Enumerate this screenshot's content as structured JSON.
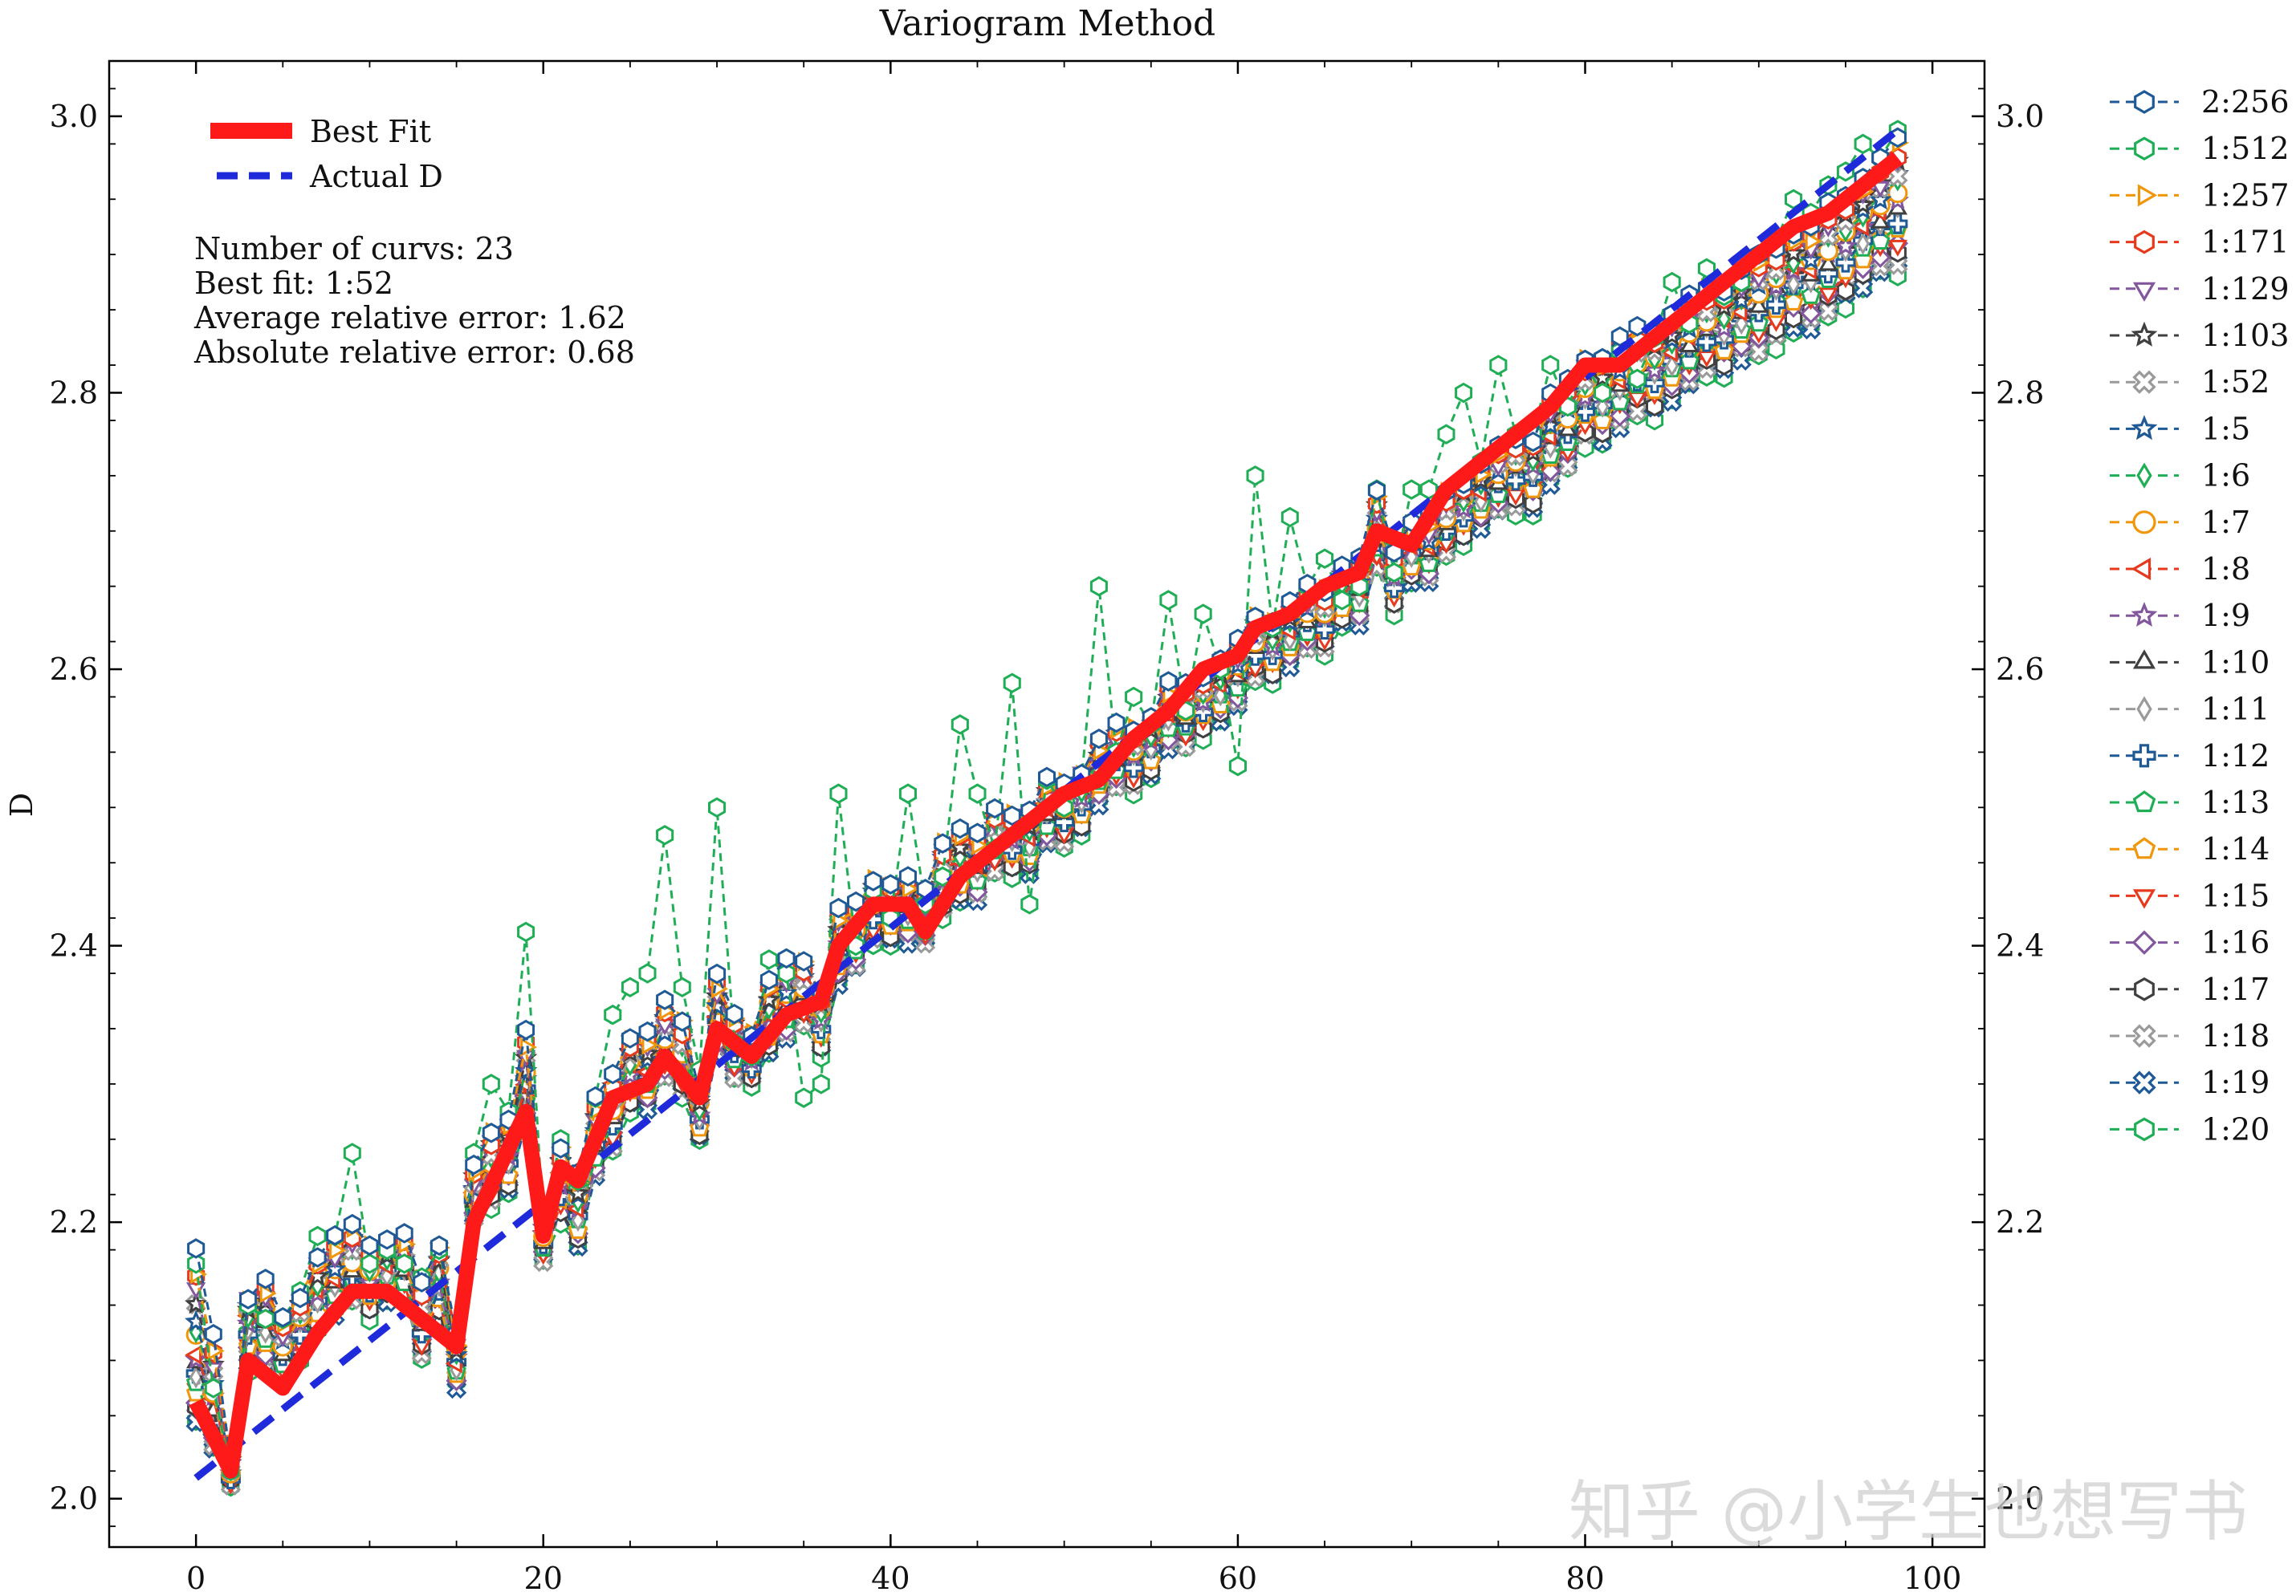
{
  "chart_data": {
    "type": "line",
    "title": "Variogram Method",
    "ylabel": "D",
    "xlabel": "",
    "xlim": [
      -5,
      103
    ],
    "ylim": [
      1.965,
      3.04
    ],
    "x_ticks": [
      0,
      20,
      40,
      60,
      80,
      100
    ],
    "y_ticks": [
      2.0,
      2.2,
      2.4,
      2.6,
      2.8,
      3.0
    ],
    "y_tick_labels": [
      "2.0",
      "2.2",
      "2.4",
      "2.6",
      "2.8",
      "3.0"
    ],
    "right_y_tick_labels": [
      "2.0",
      "2.2",
      "2.4",
      "2.6",
      "2.8",
      "3.0"
    ],
    "grid": false,
    "legend_placement": "right, outside plot area",
    "inset_legend_placement": "top-left",
    "annotation_lines": [
      "Number of curvs: 23",
      "Best fit: 1:52",
      "Average relative error: 1.62",
      "Absolute relative error: 0.68"
    ],
    "highlight_series": [
      {
        "name": "Best Fit",
        "color": "#ff1a1a",
        "style": "solid-thick",
        "x": [
          0,
          2,
          3,
          5,
          7,
          9,
          11,
          13,
          15,
          16,
          19,
          20,
          21,
          22,
          24,
          26,
          27,
          29,
          30,
          32,
          34,
          36,
          37,
          39,
          41,
          42,
          44,
          46,
          48,
          50,
          52,
          54,
          56,
          58,
          60,
          61,
          63,
          65,
          67,
          68,
          70,
          72,
          74,
          76,
          78,
          80,
          82,
          84,
          86,
          88,
          90,
          92,
          94,
          96,
          98
        ],
        "values": [
          2.07,
          2.02,
          2.1,
          2.08,
          2.12,
          2.15,
          2.15,
          2.13,
          2.11,
          2.2,
          2.28,
          2.19,
          2.24,
          2.23,
          2.29,
          2.3,
          2.32,
          2.29,
          2.34,
          2.32,
          2.35,
          2.36,
          2.4,
          2.43,
          2.43,
          2.41,
          2.45,
          2.47,
          2.49,
          2.51,
          2.52,
          2.55,
          2.57,
          2.6,
          2.61,
          2.63,
          2.64,
          2.66,
          2.67,
          2.7,
          2.69,
          2.73,
          2.75,
          2.77,
          2.79,
          2.82,
          2.82,
          2.84,
          2.86,
          2.88,
          2.9,
          2.92,
          2.93,
          2.95,
          2.97
        ]
      },
      {
        "name": "Actual D",
        "color": "#1f2bdb",
        "style": "dashed-thick",
        "x": [
          0,
          98
        ],
        "values": [
          2.015,
          2.99
        ]
      }
    ],
    "series": [
      {
        "name": "2:256",
        "color": "#1f5a96",
        "marker": "hexagon"
      },
      {
        "name": "1:512",
        "color": "#1fae55",
        "marker": "hexagon"
      },
      {
        "name": "1:257",
        "color": "#f0960a",
        "marker": "triangle-right"
      },
      {
        "name": "1:171",
        "color": "#e6391e",
        "marker": "hexagon"
      },
      {
        "name": "1:129",
        "color": "#82579e",
        "marker": "triangle-down"
      },
      {
        "name": "1:103",
        "color": "#404040",
        "marker": "star"
      },
      {
        "name": "1:52",
        "color": "#9a9a9a",
        "marker": "x-filled"
      },
      {
        "name": "1:5",
        "color": "#1f5a96",
        "marker": "star"
      },
      {
        "name": "1:6",
        "color": "#1fae55",
        "marker": "thin-diamond"
      },
      {
        "name": "1:7",
        "color": "#f0960a",
        "marker": "circle"
      },
      {
        "name": "1:8",
        "color": "#e6391e",
        "marker": "triangle-left"
      },
      {
        "name": "1:9",
        "color": "#82579e",
        "marker": "star"
      },
      {
        "name": "1:10",
        "color": "#404040",
        "marker": "triangle-up"
      },
      {
        "name": "1:11",
        "color": "#9a9a9a",
        "marker": "thin-diamond"
      },
      {
        "name": "1:12",
        "color": "#1f5a96",
        "marker": "plus-filled"
      },
      {
        "name": "1:13",
        "color": "#1fae55",
        "marker": "pentagon"
      },
      {
        "name": "1:14",
        "color": "#f0960a",
        "marker": "pentagon"
      },
      {
        "name": "1:15",
        "color": "#e6391e",
        "marker": "triangle-down"
      },
      {
        "name": "1:16",
        "color": "#82579e",
        "marker": "diamond"
      },
      {
        "name": "1:17",
        "color": "#404040",
        "marker": "hexagon"
      },
      {
        "name": "1:18",
        "color": "#9a9a9a",
        "marker": "x-filled"
      },
      {
        "name": "1:19",
        "color": "#1f5a96",
        "marker": "x-filled"
      },
      {
        "name": "1:20",
        "color": "#1fae55",
        "marker": "hexagon"
      }
    ],
    "curve_bundle": {
      "x": [
        0,
        1,
        2,
        3,
        4,
        5,
        6,
        7,
        8,
        9,
        10,
        11,
        12,
        13,
        14,
        15,
        16,
        17,
        18,
        19,
        20,
        21,
        22,
        23,
        24,
        25,
        26,
        27,
        28,
        29,
        30,
        31,
        32,
        33,
        34,
        35,
        36,
        37,
        38,
        39,
        40,
        41,
        42,
        43,
        44,
        45,
        46,
        47,
        48,
        49,
        50,
        51,
        52,
        53,
        54,
        55,
        56,
        57,
        58,
        59,
        60,
        61,
        62,
        63,
        64,
        65,
        66,
        67,
        68,
        69,
        70,
        71,
        72,
        73,
        74,
        75,
        76,
        77,
        78,
        79,
        80,
        81,
        82,
        83,
        84,
        85,
        86,
        87,
        88,
        89,
        90,
        91,
        92,
        93,
        94,
        95,
        96,
        97,
        98
      ],
      "center": [
        2.1,
        2.07,
        2.02,
        2.13,
        2.13,
        2.11,
        2.13,
        2.15,
        2.16,
        2.17,
        2.16,
        2.17,
        2.17,
        2.13,
        2.16,
        2.1,
        2.22,
        2.24,
        2.25,
        2.3,
        2.19,
        2.23,
        2.21,
        2.26,
        2.28,
        2.31,
        2.31,
        2.33,
        2.32,
        2.28,
        2.35,
        2.33,
        2.32,
        2.35,
        2.36,
        2.37,
        2.35,
        2.4,
        2.41,
        2.43,
        2.43,
        2.43,
        2.42,
        2.45,
        2.46,
        2.46,
        2.48,
        2.48,
        2.48,
        2.5,
        2.5,
        2.51,
        2.53,
        2.54,
        2.54,
        2.55,
        2.57,
        2.57,
        2.58,
        2.59,
        2.6,
        2.62,
        2.62,
        2.63,
        2.64,
        2.64,
        2.66,
        2.66,
        2.7,
        2.67,
        2.69,
        2.69,
        2.71,
        2.72,
        2.73,
        2.74,
        2.75,
        2.75,
        2.77,
        2.78,
        2.8,
        2.8,
        2.81,
        2.82,
        2.82,
        2.83,
        2.84,
        2.85,
        2.85,
        2.86,
        2.87,
        2.88,
        2.89,
        2.89,
        2.9,
        2.91,
        2.92,
        2.93,
        2.94
      ],
      "low_spread": [
        0.05,
        0.04,
        0.01,
        0.04,
        0.04,
        0.03,
        0.03,
        0.03,
        0.03,
        0.03,
        0.03,
        0.03,
        0.03,
        0.03,
        0.03,
        0.02,
        0.02,
        0.03,
        0.03,
        0.03,
        0.02,
        0.03,
        0.03,
        0.03,
        0.03,
        0.03,
        0.03,
        0.03,
        0.03,
        0.02,
        0.03,
        0.03,
        0.02,
        0.03,
        0.03,
        0.03,
        0.03,
        0.03,
        0.03,
        0.03,
        0.03,
        0.03,
        0.02,
        0.03,
        0.03,
        0.03,
        0.03,
        0.03,
        0.03,
        0.03,
        0.03,
        0.03,
        0.03,
        0.03,
        0.03,
        0.03,
        0.03,
        0.03,
        0.03,
        0.03,
        0.03,
        0.03,
        0.03,
        0.03,
        0.03,
        0.03,
        0.03,
        0.03,
        0.03,
        0.03,
        0.03,
        0.03,
        0.03,
        0.03,
        0.03,
        0.03,
        0.04,
        0.04,
        0.04,
        0.04,
        0.04,
        0.04,
        0.04,
        0.04,
        0.04,
        0.04,
        0.04,
        0.04,
        0.04,
        0.04,
        0.05,
        0.05,
        0.05,
        0.05,
        0.05,
        0.05,
        0.05,
        0.05,
        0.06
      ],
      "high_spread": [
        0.09,
        0.05,
        0.01,
        0.02,
        0.03,
        0.02,
        0.02,
        0.03,
        0.03,
        0.03,
        0.03,
        0.02,
        0.02,
        0.03,
        0.03,
        0.02,
        0.02,
        0.03,
        0.03,
        0.04,
        0.02,
        0.03,
        0.03,
        0.03,
        0.03,
        0.03,
        0.03,
        0.03,
        0.03,
        0.02,
        0.03,
        0.02,
        0.02,
        0.03,
        0.03,
        0.02,
        0.02,
        0.03,
        0.02,
        0.02,
        0.02,
        0.02,
        0.02,
        0.03,
        0.03,
        0.02,
        0.02,
        0.02,
        0.02,
        0.02,
        0.02,
        0.02,
        0.02,
        0.02,
        0.02,
        0.02,
        0.02,
        0.02,
        0.02,
        0.02,
        0.02,
        0.02,
        0.02,
        0.02,
        0.02,
        0.02,
        0.02,
        0.02,
        0.03,
        0.02,
        0.02,
        0.02,
        0.02,
        0.02,
        0.02,
        0.02,
        0.02,
        0.02,
        0.03,
        0.03,
        0.03,
        0.03,
        0.03,
        0.03,
        0.03,
        0.03,
        0.03,
        0.03,
        0.03,
        0.03,
        0.03,
        0.03,
        0.03,
        0.03,
        0.04,
        0.04,
        0.04,
        0.04,
        0.05
      ]
    },
    "outlier_series_1512": {
      "x": [
        0,
        1,
        2,
        3,
        4,
        5,
        6,
        7,
        8,
        9,
        10,
        11,
        12,
        13,
        14,
        15,
        16,
        17,
        18,
        19,
        20,
        21,
        22,
        23,
        24,
        25,
        26,
        27,
        28,
        29,
        30,
        31,
        32,
        33,
        34,
        35,
        36,
        37,
        38,
        39,
        40,
        41,
        42,
        43,
        44,
        45,
        46,
        47,
        48,
        49,
        50,
        51,
        52,
        53,
        54,
        55,
        56,
        57,
        58,
        59,
        60,
        61,
        62,
        63,
        64,
        65,
        66,
        67,
        68,
        69,
        70,
        71,
        72,
        73,
        74,
        75,
        76,
        77,
        78,
        79,
        80,
        81,
        82,
        83,
        84,
        85,
        86,
        87,
        88,
        89,
        90,
        91,
        92,
        93,
        94,
        95,
        96,
        97,
        98
      ],
      "values": [
        2.17,
        2.08,
        2.02,
        2.14,
        2.13,
        2.13,
        2.15,
        2.19,
        2.19,
        2.25,
        2.17,
        2.18,
        2.17,
        2.16,
        2.18,
        2.12,
        2.25,
        2.3,
        2.28,
        2.41,
        2.2,
        2.26,
        2.23,
        2.29,
        2.35,
        2.37,
        2.38,
        2.48,
        2.37,
        2.31,
        2.5,
        2.33,
        2.32,
        2.39,
        2.38,
        2.29,
        2.3,
        2.51,
        2.4,
        2.44,
        2.42,
        2.51,
        2.43,
        2.45,
        2.56,
        2.51,
        2.47,
        2.59,
        2.43,
        2.52,
        2.5,
        2.52,
        2.66,
        2.54,
        2.58,
        2.56,
        2.65,
        2.57,
        2.64,
        2.6,
        2.53,
        2.74,
        2.63,
        2.71,
        2.66,
        2.68,
        2.65,
        2.66,
        2.73,
        2.67,
        2.73,
        2.73,
        2.77,
        2.8,
        2.75,
        2.82,
        2.77,
        2.77,
        2.82,
        2.79,
        2.82,
        2.8,
        2.83,
        2.81,
        2.84,
        2.88,
        2.85,
        2.89,
        2.87,
        2.88,
        2.9,
        2.91,
        2.94,
        2.93,
        2.95,
        2.96,
        2.98,
        2.97,
        2.99
      ]
    }
  },
  "watermark": "知乎 @小学生也想写书"
}
